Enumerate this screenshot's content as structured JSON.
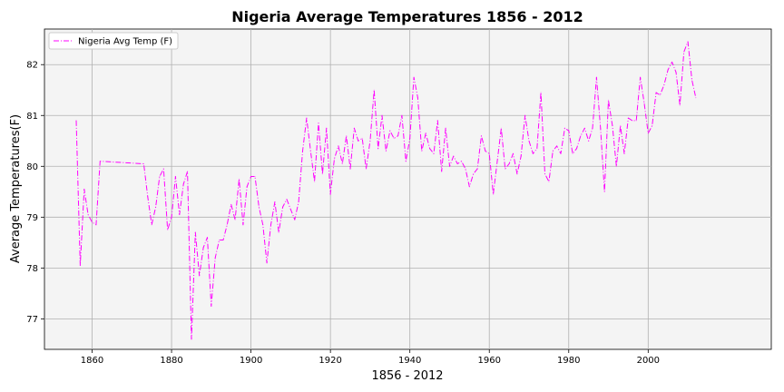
{
  "chart_data": {
    "type": "line",
    "title": "Nigeria Average Temperatures 1856 - 2012",
    "xlabel": "1856 - 2012",
    "ylabel": "Average Temperatures(F)",
    "xlim": [
      1848,
      2031
    ],
    "ylim": [
      76.4,
      82.7
    ],
    "x_ticks": [
      1860,
      1880,
      1900,
      1920,
      1940,
      1960,
      1980,
      2000
    ],
    "y_ticks": [
      77,
      78,
      79,
      80,
      81,
      82
    ],
    "grid": true,
    "legend_position": "top-left",
    "colors": {
      "line": "#ff00ff",
      "plot_background": "#f4f4f4",
      "grid": "#b0b0b0"
    },
    "series": [
      {
        "name": "Nigeria Avg Temp (F)",
        "line_style": "dash-dot",
        "x": [
          1856,
          1857,
          1858,
          1859,
          1860,
          1861,
          1862,
          1873,
          1874,
          1875,
          1876,
          1877,
          1878,
          1879,
          1880,
          1881,
          1882,
          1883,
          1884,
          1885,
          1886,
          1887,
          1888,
          1889,
          1890,
          1891,
          1892,
          1893,
          1894,
          1895,
          1896,
          1897,
          1898,
          1899,
          1900,
          1901,
          1902,
          1903,
          1904,
          1905,
          1906,
          1907,
          1908,
          1909,
          1910,
          1911,
          1912,
          1913,
          1914,
          1915,
          1916,
          1917,
          1918,
          1919,
          1920,
          1921,
          1922,
          1923,
          1924,
          1925,
          1926,
          1927,
          1928,
          1929,
          1930,
          1931,
          1932,
          1933,
          1934,
          1935,
          1936,
          1937,
          1938,
          1939,
          1940,
          1941,
          1942,
          1943,
          1944,
          1945,
          1946,
          1947,
          1948,
          1949,
          1950,
          1951,
          1952,
          1953,
          1954,
          1955,
          1956,
          1957,
          1958,
          1959,
          1960,
          1961,
          1962,
          1963,
          1964,
          1965,
          1966,
          1967,
          1968,
          1969,
          1970,
          1971,
          1972,
          1973,
          1974,
          1975,
          1976,
          1977,
          1978,
          1979,
          1980,
          1981,
          1982,
          1983,
          1984,
          1985,
          1986,
          1987,
          1988,
          1989,
          1990,
          1991,
          1992,
          1993,
          1994,
          1995,
          1996,
          1997,
          1998,
          1999,
          2000,
          2001,
          2002,
          2003,
          2004,
          2005,
          2006,
          2007,
          2008,
          2009,
          2010,
          2011,
          2012
        ],
        "values": [
          80.9,
          78.05,
          79.55,
          79.05,
          78.9,
          78.85,
          80.1,
          80.05,
          79.4,
          78.85,
          79.2,
          79.8,
          79.95,
          78.75,
          79.0,
          79.8,
          79.05,
          79.65,
          79.9,
          76.6,
          78.7,
          77.85,
          78.4,
          78.6,
          77.25,
          78.2,
          78.55,
          78.55,
          78.85,
          79.25,
          78.95,
          79.75,
          78.85,
          79.6,
          79.8,
          79.8,
          79.2,
          78.85,
          78.1,
          78.85,
          79.3,
          78.7,
          79.2,
          79.35,
          79.15,
          78.95,
          79.3,
          80.3,
          80.95,
          80.3,
          79.7,
          80.85,
          79.85,
          80.75,
          79.45,
          80.15,
          80.4,
          80.05,
          80.6,
          79.95,
          80.75,
          80.5,
          80.55,
          79.95,
          80.5,
          81.5,
          80.35,
          81.0,
          80.3,
          80.7,
          80.55,
          80.6,
          81.0,
          80.1,
          80.55,
          81.75,
          81.35,
          80.3,
          80.65,
          80.35,
          80.25,
          80.9,
          79.9,
          80.75,
          80.0,
          80.2,
          80.05,
          80.1,
          79.95,
          79.6,
          79.85,
          79.95,
          80.6,
          80.3,
          80.25,
          79.45,
          80.1,
          80.75,
          79.95,
          80.05,
          80.25,
          79.85,
          80.2,
          81.0,
          80.5,
          80.25,
          80.35,
          81.45,
          79.85,
          79.7,
          80.3,
          80.4,
          80.25,
          80.75,
          80.7,
          80.25,
          80.35,
          80.6,
          80.75,
          80.5,
          80.75,
          81.75,
          80.75,
          79.5,
          81.3,
          80.8,
          80.0,
          80.8,
          80.25,
          80.95,
          80.9,
          80.9,
          81.75,
          81.25,
          80.65,
          80.8,
          81.45,
          81.4,
          81.6,
          81.9,
          82.05,
          81.85,
          81.2,
          82.25,
          82.45,
          81.7,
          81.35
        ]
      }
    ]
  }
}
